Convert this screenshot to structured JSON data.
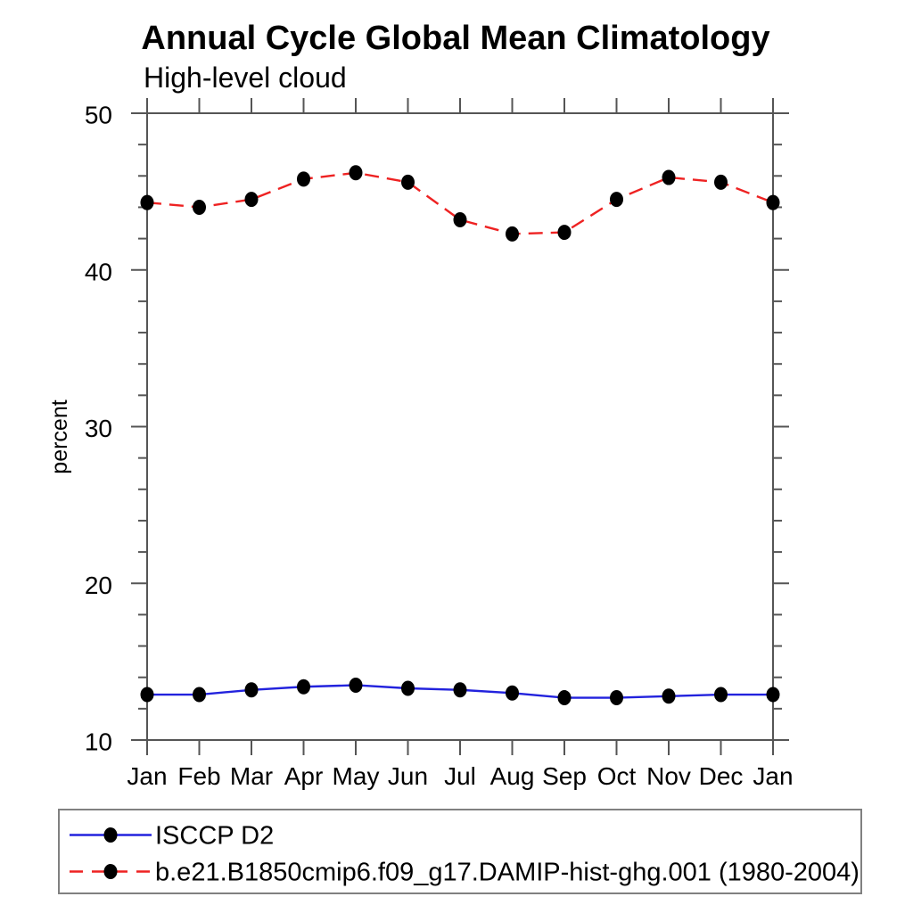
{
  "chart_data": {
    "type": "line",
    "title": "Annual Cycle Global Mean Climatology",
    "subtitle": "High-level cloud",
    "ylabel": "percent",
    "categories": [
      "Jan",
      "Feb",
      "Mar",
      "Apr",
      "May",
      "Jun",
      "Jul",
      "Aug",
      "Sep",
      "Oct",
      "Nov",
      "Dec",
      "Jan"
    ],
    "ylim": [
      10,
      50
    ],
    "ytick_major": [
      10,
      20,
      30,
      40,
      50
    ],
    "ytick_minor_step": 2,
    "grid": false,
    "legend_position": "bottom-left-box",
    "axis_color": "#555555",
    "text_color": "#000000",
    "marker_description": "filled black circle on every data point",
    "series": [
      {
        "name": "ISCCP D2",
        "color": "#2222dd",
        "line_style": "solid",
        "marker": "filled-circle",
        "marker_color": "#000000",
        "values": [
          12.9,
          12.9,
          13.2,
          13.4,
          13.5,
          13.3,
          13.2,
          13.0,
          12.7,
          12.7,
          12.8,
          12.9,
          12.9
        ]
      },
      {
        "name": "b.e21.B1850cmip6.f09_g17.DAMIP-hist-ghg.001 (1980-2004)",
        "color": "#ee2222",
        "line_style": "dashed",
        "marker": "filled-circle",
        "marker_color": "#000000",
        "values": [
          44.3,
          44.0,
          44.5,
          45.8,
          46.2,
          45.6,
          43.2,
          42.3,
          42.4,
          44.5,
          45.9,
          45.6,
          44.3
        ]
      }
    ]
  }
}
